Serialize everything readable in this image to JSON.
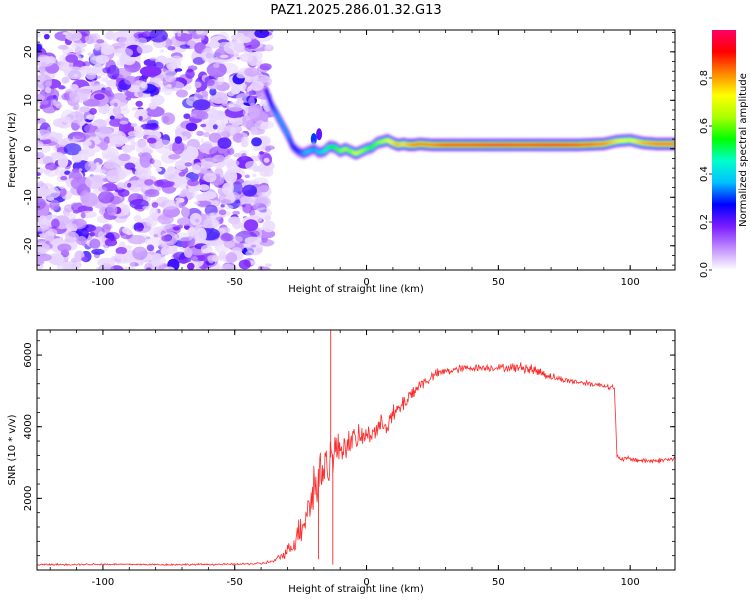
{
  "page": {
    "title": "PAZ1.2025.286.01.32.G13"
  },
  "chart_data": [
    {
      "type": "heatmap",
      "xlabel": "Height of straight line (km)",
      "ylabel": "Frequency (Hz)",
      "xlim": [
        -125,
        117
      ],
      "ylim": [
        -25,
        24.5
      ],
      "xticks": [
        -100,
        -50,
        0,
        50,
        100
      ],
      "xtick_labels": [
        "-100",
        "-50",
        "0",
        "50",
        "100"
      ],
      "yticks": [
        -20,
        -10,
        0,
        10,
        20
      ],
      "ytick_labels": [
        "-20",
        "-10",
        "0",
        "10",
        "20"
      ],
      "noise_region": {
        "x_range": [
          -125,
          -37
        ],
        "y_range": [
          -25,
          24.5
        ],
        "amplitude_range": [
          0.0,
          0.25
        ]
      },
      "ridge": {
        "x": [
          -38,
          -36,
          -34,
          -32,
          -30,
          -28,
          -26,
          -24,
          -22,
          -20,
          -18,
          -16,
          -14,
          -12,
          -10,
          -8,
          -6,
          -4,
          -2,
          0,
          2,
          4,
          6,
          8,
          10,
          12,
          14,
          16,
          18,
          20,
          25,
          30,
          40,
          50,
          60,
          70,
          80,
          90,
          95,
          100,
          105,
          110,
          117
        ],
        "y": [
          12,
          9,
          7,
          5,
          3,
          0.5,
          -0.5,
          -1,
          -0.5,
          0,
          -0.8,
          -0.5,
          0.5,
          0.3,
          -0.5,
          0,
          -0.5,
          -1,
          -0.5,
          0,
          0.3,
          1.2,
          1.5,
          1.8,
          1.2,
          0.8,
          1,
          0.8,
          0.8,
          1,
          0.8,
          0.8,
          0.8,
          0.8,
          0.8,
          0.8,
          0.8,
          1,
          1.6,
          1.8,
          1.2,
          1,
          1
        ],
        "amplitude": [
          0.25,
          0.3,
          0.35,
          0.35,
          0.35,
          0.3,
          0.3,
          0.35,
          0.4,
          0.35,
          0.4,
          0.45,
          0.5,
          0.55,
          0.6,
          0.65,
          0.6,
          0.7,
          0.65,
          0.6,
          0.55,
          0.6,
          0.65,
          0.7,
          0.75,
          0.8,
          0.75,
          0.8,
          0.85,
          0.85,
          0.85,
          0.9,
          0.9,
          0.95,
          0.9,
          0.95,
          0.9,
          0.85,
          0.75,
          0.7,
          0.8,
          0.85,
          0.85
        ]
      },
      "blobs": [
        {
          "x": -18,
          "y": 3,
          "amplitude": 0.2
        },
        {
          "x": -20,
          "y": 2,
          "amplitude": 0.3
        }
      ],
      "colorbar": {
        "label": "Normalized spectral amplitude",
        "range": [
          0,
          1
        ],
        "ticks": [
          0.0,
          0.2,
          0.4,
          0.6,
          0.8
        ],
        "tick_labels": [
          "0.0",
          "0.2",
          "0.4",
          "0.6",
          "0.8"
        ],
        "colors": [
          "#ffffff",
          "#c08cff",
          "#7a1cff",
          "#0000ff",
          "#00bfff",
          "#00ffcc",
          "#00ff00",
          "#aaff00",
          "#ffff00",
          "#ff8800",
          "#ff0000",
          "#ff0066"
        ]
      }
    },
    {
      "type": "line",
      "xlabel": "Height of straight line (km)",
      "ylabel": "SNR (10 * v/v)",
      "xlim": [
        -125,
        117
      ],
      "ylim": [
        0,
        6700
      ],
      "xticks": [
        -100,
        -50,
        0,
        50,
        100
      ],
      "xtick_labels": [
        "-100",
        "-50",
        "0",
        "50",
        "100"
      ],
      "yticks": [
        2000,
        4000,
        6000
      ],
      "ytick_labels": [
        "2000",
        "4000",
        "6000"
      ],
      "series": [
        {
          "color": "#ff2a2a",
          "x": [
            -125,
            -100,
            -75,
            -50,
            -40,
            -35,
            -32,
            -30,
            -28,
            -26,
            -24,
            -22,
            -20,
            -18,
            -16,
            -14,
            -12,
            -10,
            -8,
            -6,
            -4,
            -2,
            0,
            2,
            4,
            6,
            8,
            10,
            12,
            14,
            16,
            18,
            20,
            22,
            24,
            26,
            28,
            30,
            35,
            40,
            45,
            50,
            55,
            60,
            65,
            70,
            75,
            80,
            85,
            90,
            94,
            95,
            96,
            100,
            105,
            110,
            117
          ],
          "y": [
            150,
            160,
            150,
            160,
            180,
            250,
            400,
            550,
            700,
            1000,
            1400,
            1800,
            2200,
            2600,
            2900,
            3100,
            3300,
            3400,
            3500,
            3600,
            3650,
            3700,
            3750,
            3850,
            3950,
            4050,
            4150,
            4300,
            4450,
            4650,
            4850,
            5000,
            5150,
            5250,
            5350,
            5450,
            5500,
            5550,
            5600,
            5650,
            5650,
            5650,
            5650,
            5650,
            5550,
            5400,
            5300,
            5250,
            5200,
            5150,
            5100,
            3150,
            3100,
            3100,
            3050,
            3050,
            3100
          ],
          "noise_amp": [
            30,
            30,
            30,
            30,
            40,
            60,
            150,
            200,
            300,
            500,
            700,
            800,
            1200,
            900,
            1000,
            800,
            700,
            500,
            500,
            450,
            400,
            400,
            350,
            350,
            350,
            350,
            350,
            350,
            350,
            300,
            280,
            260,
            240,
            200,
            180,
            170,
            160,
            150,
            150,
            120,
            120,
            120,
            150,
            200,
            200,
            130,
            100,
            100,
            100,
            90,
            90,
            90,
            90,
            90,
            90,
            90,
            90
          ]
        }
      ],
      "spikes": [
        {
          "x": -13.6,
          "y": 6700
        },
        {
          "x": -12.8,
          "y": 150
        },
        {
          "x": -18.2,
          "y": 300
        }
      ]
    }
  ]
}
